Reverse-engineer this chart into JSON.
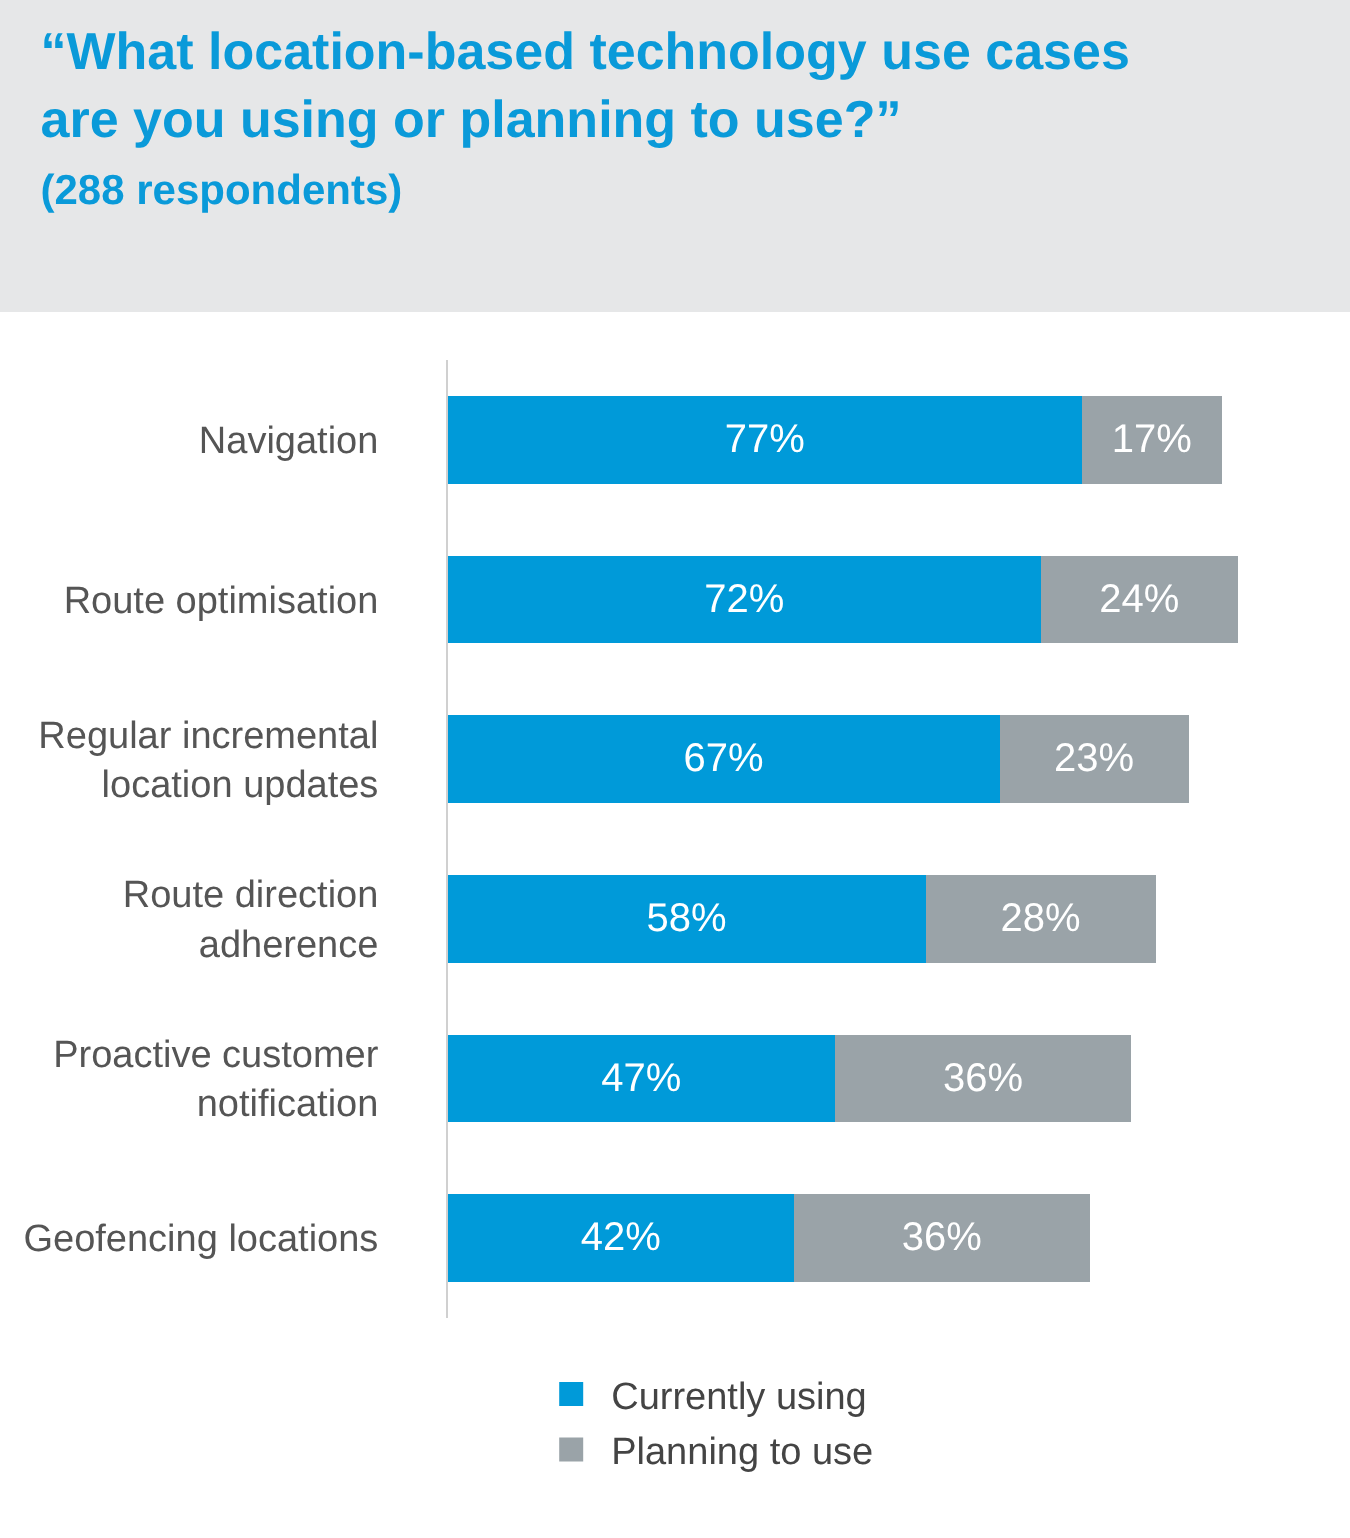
{
  "chart_data": {
    "type": "bar",
    "orientation": "horizontal",
    "stacked": true,
    "title": "“What location-based technology use cases are you using or planning to use?”",
    "subtitle": "(288 respondents)",
    "categories": [
      "Navigation",
      "Route optimisation",
      "Regular incremental location updates",
      "Route direction adherence",
      "Proactive customer notification",
      "Geofencing locations"
    ],
    "series": [
      {
        "name": "Currently using",
        "color": "#009ad9",
        "values": [
          77,
          72,
          67,
          58,
          47,
          42
        ],
        "value_labels": [
          "77%",
          "72%",
          "67%",
          "58%",
          "47%",
          "42%"
        ]
      },
      {
        "name": "Planning to use",
        "color": "#9aa3a8",
        "values": [
          17,
          24,
          23,
          28,
          36,
          36
        ],
        "value_labels": [
          "17%",
          "24%",
          "23%",
          "28%",
          "36%",
          "36%"
        ]
      }
    ],
    "legend": "bottom"
  }
}
